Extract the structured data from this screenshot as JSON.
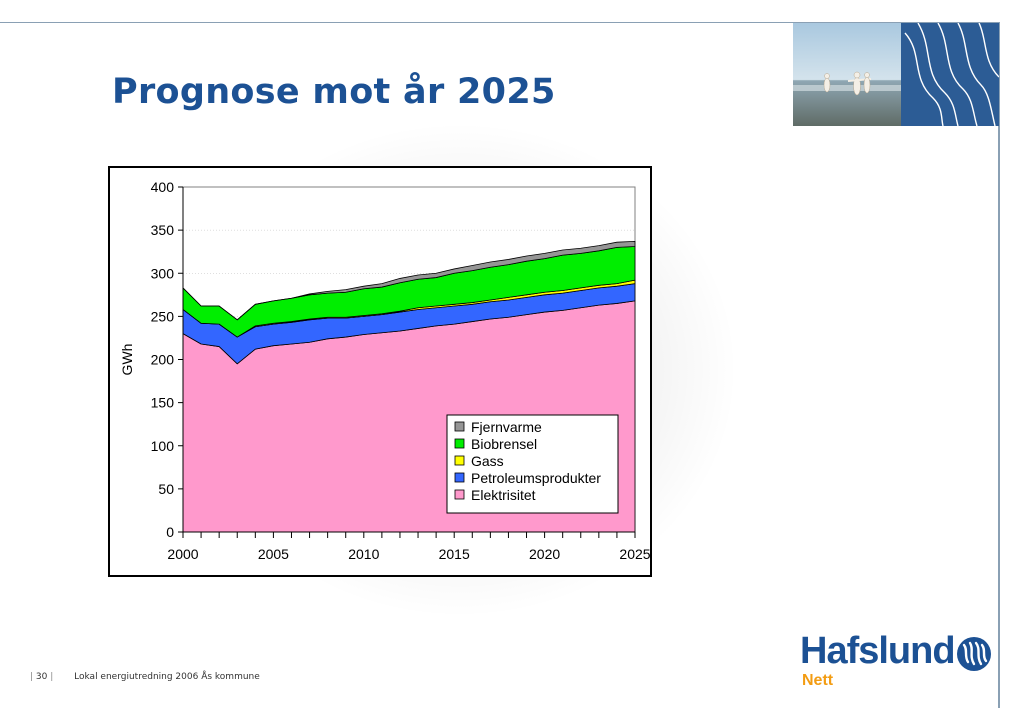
{
  "slide": {
    "title": "Prognose mot år 2025",
    "footer_page": "30",
    "footer_text": "Lokal energiutredning 2006 Ås kommune"
  },
  "logo": {
    "name": "Hafslund",
    "sub": "Nett",
    "emblem_icon": "hafslund-wave-emblem-icon"
  },
  "photo": {
    "icon": "beach-people-photo-icon"
  },
  "colors": {
    "title": "#1c5194",
    "fjernvarme": "#969696",
    "biobrensel": "#00ee00",
    "gass": "#ffff00",
    "petroleum": "#3366ff",
    "elektrisitet": "#ff99cc"
  },
  "chart_data": {
    "type": "area",
    "stacked": true,
    "title": "",
    "xlabel": "",
    "ylabel": "GWh",
    "xlim": [
      2000,
      2025
    ],
    "ylim": [
      0,
      400
    ],
    "xticks": [
      2000,
      2005,
      2010,
      2015,
      2020,
      2025
    ],
    "yticks": [
      0,
      50,
      100,
      150,
      200,
      250,
      300,
      350,
      400
    ],
    "grid": "horizontal-dotted",
    "legend_position": "bottom-right",
    "x": [
      2000,
      2001,
      2002,
      2003,
      2004,
      2005,
      2006,
      2007,
      2008,
      2009,
      2010,
      2011,
      2012,
      2013,
      2014,
      2015,
      2016,
      2017,
      2018,
      2019,
      2020,
      2021,
      2022,
      2023,
      2024,
      2025
    ],
    "series": [
      {
        "name": "Elektrisitet",
        "color": "#ff99cc",
        "values": [
          230,
          218,
          215,
          195,
          212,
          216,
          218,
          220,
          224,
          226,
          229,
          231,
          233,
          236,
          239,
          241,
          244,
          247,
          249,
          252,
          255,
          257,
          260,
          263,
          265,
          268
        ]
      },
      {
        "name": "Petroleumsprodukter",
        "color": "#3366ff",
        "values": [
          28,
          24,
          26,
          31,
          26,
          25,
          25,
          26,
          24,
          22,
          21,
          21,
          22,
          22,
          21,
          21,
          20,
          20,
          20,
          20,
          20,
          20,
          20,
          20,
          20,
          20
        ]
      },
      {
        "name": "Gass",
        "color": "#ffff00",
        "values": [
          0,
          0,
          0,
          0,
          1,
          1,
          1,
          1,
          1,
          1,
          1,
          1,
          1,
          2,
          2,
          2,
          2,
          2,
          3,
          3,
          3,
          3,
          3,
          3,
          3,
          4
        ]
      },
      {
        "name": "Biobrensel",
        "color": "#00ee00",
        "values": [
          25,
          20,
          21,
          20,
          25,
          26,
          27,
          28,
          28,
          29,
          31,
          31,
          33,
          33,
          33,
          36,
          37,
          38,
          38,
          39,
          39,
          41,
          40,
          40,
          42,
          39
        ]
      },
      {
        "name": "Fjernvarme",
        "color": "#969696",
        "values": [
          0,
          0,
          0,
          0,
          0,
          0,
          0,
          1,
          2,
          3,
          3,
          4,
          5,
          5,
          5,
          5,
          6,
          6,
          6,
          6,
          6,
          6,
          6,
          6,
          6,
          6
        ]
      }
    ],
    "legend_order": [
      "Fjernvarme",
      "Biobrensel",
      "Gass",
      "Petroleumsprodukter",
      "Elektrisitet"
    ]
  }
}
